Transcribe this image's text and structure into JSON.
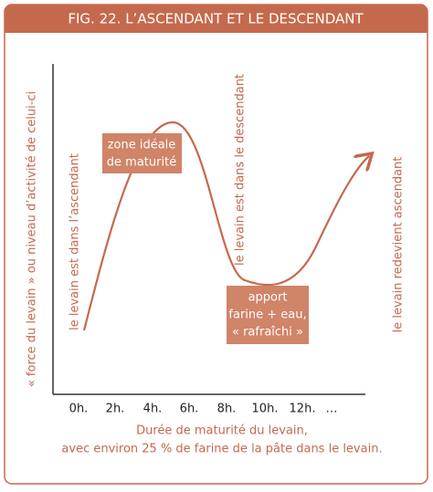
{
  "title": "FIG. 22. L’ASCENDANT ET LE DESCENDANT",
  "y_axis_label": "« force du levain » ou niveau d’activité de celui-ci",
  "x_axis": {
    "ticks": [
      "0h.",
      "2h.",
      "4h.",
      "6h.",
      "8h.",
      "10h.",
      "12h.",
      "…"
    ],
    "label_lines": [
      "Durée de maturité du levain,",
      "avec environ 25 % de farine de la pâte dans le levain."
    ]
  },
  "annotations": [
    "le levain est dans l’ascendant",
    "le levain est dans le descendant",
    "le levain redevient ascendant"
  ],
  "boxes": [
    {
      "lines": [
        "zone idéale",
        "de maturité"
      ]
    },
    {
      "lines": [
        "apport",
        "farine + eau,",
        "« rafraîchi »"
      ]
    }
  ]
}
